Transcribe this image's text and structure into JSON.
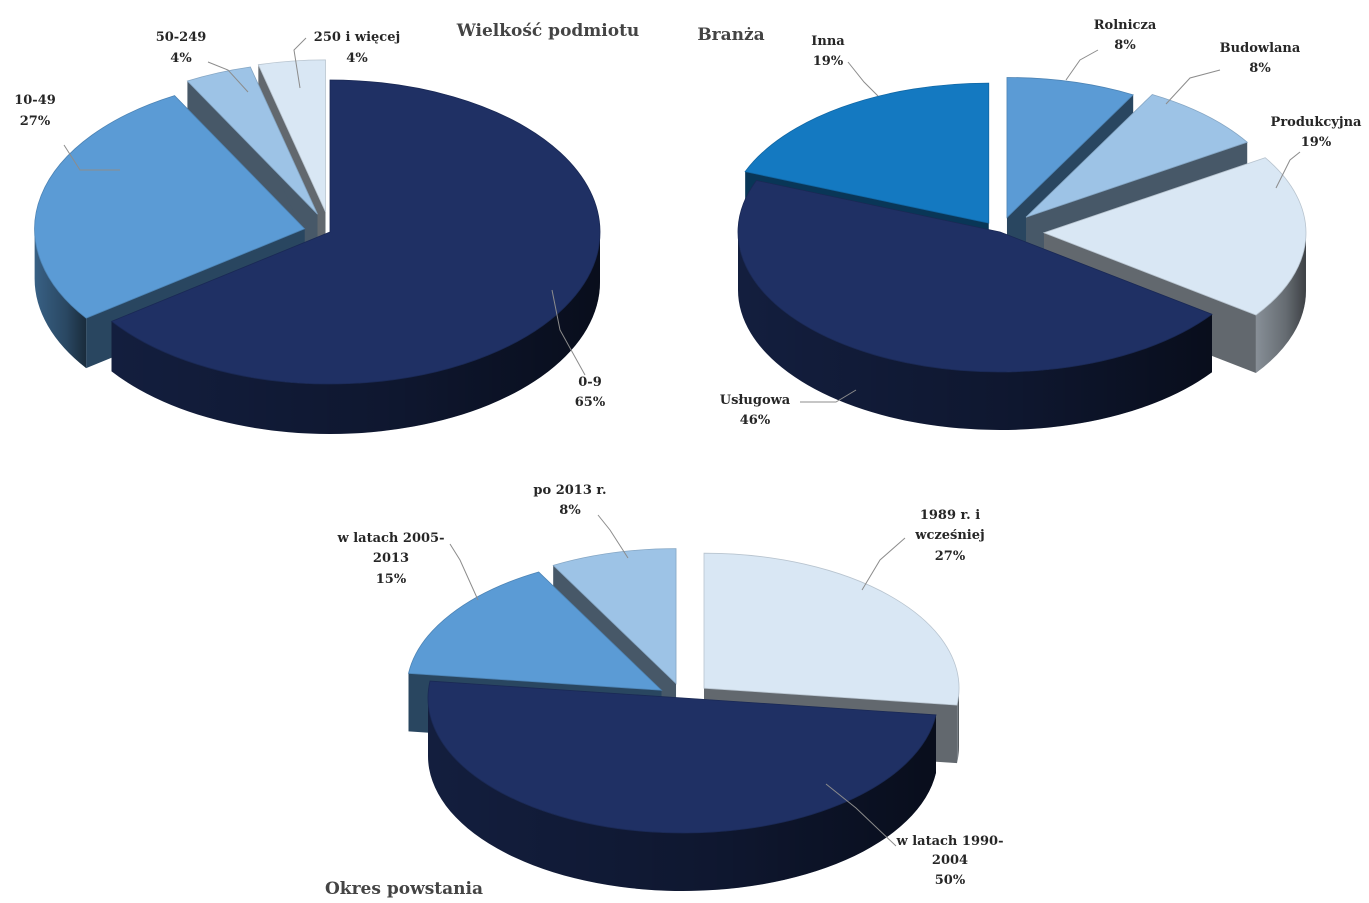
{
  "chart_data": [
    {
      "type": "pie",
      "title": "Wielkość podmiotu",
      "slices": [
        {
          "label": "0-9",
          "pct_text": "65%",
          "value": 65,
          "color": "#1f3064"
        },
        {
          "label": "10-49",
          "pct_text": "27%",
          "value": 27,
          "color": "#5b9bd5"
        },
        {
          "label": "50-249",
          "pct_text": "4%",
          "value": 4,
          "color": "#9dc3e6"
        },
        {
          "label": "250 i więcej",
          "pct_text": "4%",
          "value": 4,
          "color": "#d9e7f4"
        }
      ]
    },
    {
      "type": "pie",
      "title": "Branża",
      "slices": [
        {
          "label": "Rolnicza",
          "pct_text": "8%",
          "value": 8,
          "color": "#5b9bd5"
        },
        {
          "label": "Budowlana",
          "pct_text": "8%",
          "value": 8,
          "color": "#9dc3e6"
        },
        {
          "label": "Produkcyjna",
          "pct_text": "19%",
          "value": 19,
          "color": "#d9e7f4"
        },
        {
          "label": "Usługowa",
          "pct_text": "46%",
          "value": 46,
          "color": "#1f3064"
        },
        {
          "label": "Inna",
          "pct_text": "19%",
          "value": 19,
          "color": "#1479c1"
        }
      ]
    },
    {
      "type": "pie",
      "title": "Okres powstania",
      "slices": [
        {
          "label": "1989 r. i wcześniej",
          "label_lines": [
            "1989 r. i",
            "wcześniej"
          ],
          "pct_text": "27%",
          "value": 27,
          "color": "#d9e7f4"
        },
        {
          "label": "w latach 1990-2004",
          "label_lines": [
            "w latach 1990-",
            "2004"
          ],
          "pct_text": "50%",
          "value": 50,
          "color": "#1f3064"
        },
        {
          "label": "w latach 2005-2013",
          "label_lines": [
            "w latach 2005-",
            "2013"
          ],
          "pct_text": "15%",
          "value": 15,
          "color": "#5b9bd5"
        },
        {
          "label": "po 2013 r.",
          "pct_text": "8%",
          "value": 8,
          "color": "#9dc3e6"
        }
      ]
    }
  ]
}
